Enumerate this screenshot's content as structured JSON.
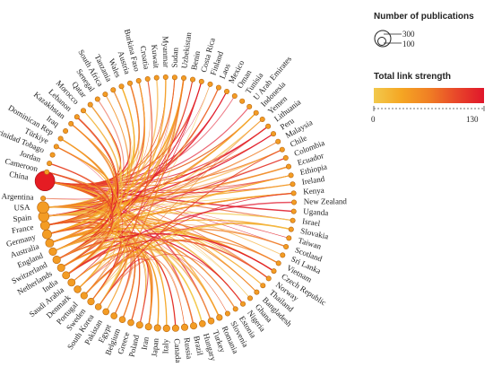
{
  "legend": {
    "size_title": "Number of publications",
    "size_values": [
      "300",
      "100"
    ],
    "color_title": "Total link strength",
    "color_min": "0",
    "color_max": "130",
    "gradient": [
      "#f2c94c",
      "#f5a623",
      "#f07f24",
      "#e8472a",
      "#e0162b"
    ]
  },
  "colors": {
    "node": "#f39c24",
    "node_stroke": "#b8650f",
    "largest_node": "#e51c23"
  },
  "network": {
    "largest_node": "China",
    "countries": [
      "China",
      "Cameroon",
      "Jordan",
      "Trinidad Tobago",
      "Türkiye",
      "Dominican Rep",
      "Iraq",
      "Kazakhstan",
      "Lebanon",
      "Morocco",
      "Qatar",
      "Senegal",
      "South Africa",
      "Tanzania",
      "Wales",
      "Austria",
      "Burkina Faso",
      "Croatia",
      "Kuwait",
      "Myanmar",
      "Sudan",
      "Uzbekistan",
      "Benin",
      "Costa Rica",
      "Finland",
      "Laos",
      "Mexico",
      "Oman",
      "Tunisia",
      "U Arab Emirates",
      "Indonesia",
      "Yemen",
      "Lithuania",
      "Peru",
      "Malaysia",
      "Chile",
      "Colombia",
      "Ecuador",
      "Ethiopia",
      "Ireland",
      "Kenya",
      "New Zealand",
      "Uganda",
      "Israel",
      "Slovakia",
      "Taiwan",
      "Scotland",
      "Sri Lanka",
      "Vietnam",
      "Czech Republic",
      "Norway",
      "Thailand",
      "Bangladesh",
      "Ghana",
      "Nigeria",
      "Estonia",
      "Slovenia",
      "Romania",
      "Turkey",
      "Hungary",
      "Brazil",
      "Russia",
      "Canada",
      "Italy",
      "Japan",
      "Iran",
      "Poland",
      "Greece",
      "Belgium",
      "Egypt",
      "Pakistan",
      "South Korea",
      "Sweden",
      "Portugal",
      "Denmark",
      "Saudi Arabia",
      "India",
      "Netherlands",
      "Switzerland",
      "England",
      "Australia",
      "Germany",
      "France",
      "Spain",
      "USA",
      "Argentina"
    ],
    "publication_weights": [
      300,
      4,
      4,
      4,
      4,
      4,
      4,
      4,
      4,
      4,
      4,
      4,
      4,
      4,
      4,
      4,
      4,
      4,
      4,
      4,
      4,
      4,
      4,
      4,
      4,
      4,
      4,
      4,
      4,
      4,
      4,
      4,
      4,
      4,
      4,
      4,
      4,
      4,
      4,
      4,
      4,
      4,
      4,
      4,
      4,
      4,
      4,
      4,
      4,
      4,
      4,
      4,
      4,
      4,
      4,
      4,
      4,
      10,
      12,
      12,
      14,
      14,
      14,
      16,
      14,
      14,
      14,
      12,
      12,
      12,
      12,
      12,
      16,
      16,
      18,
      20,
      20,
      22,
      24,
      24,
      30,
      40,
      40,
      60,
      80,
      4
    ]
  }
}
